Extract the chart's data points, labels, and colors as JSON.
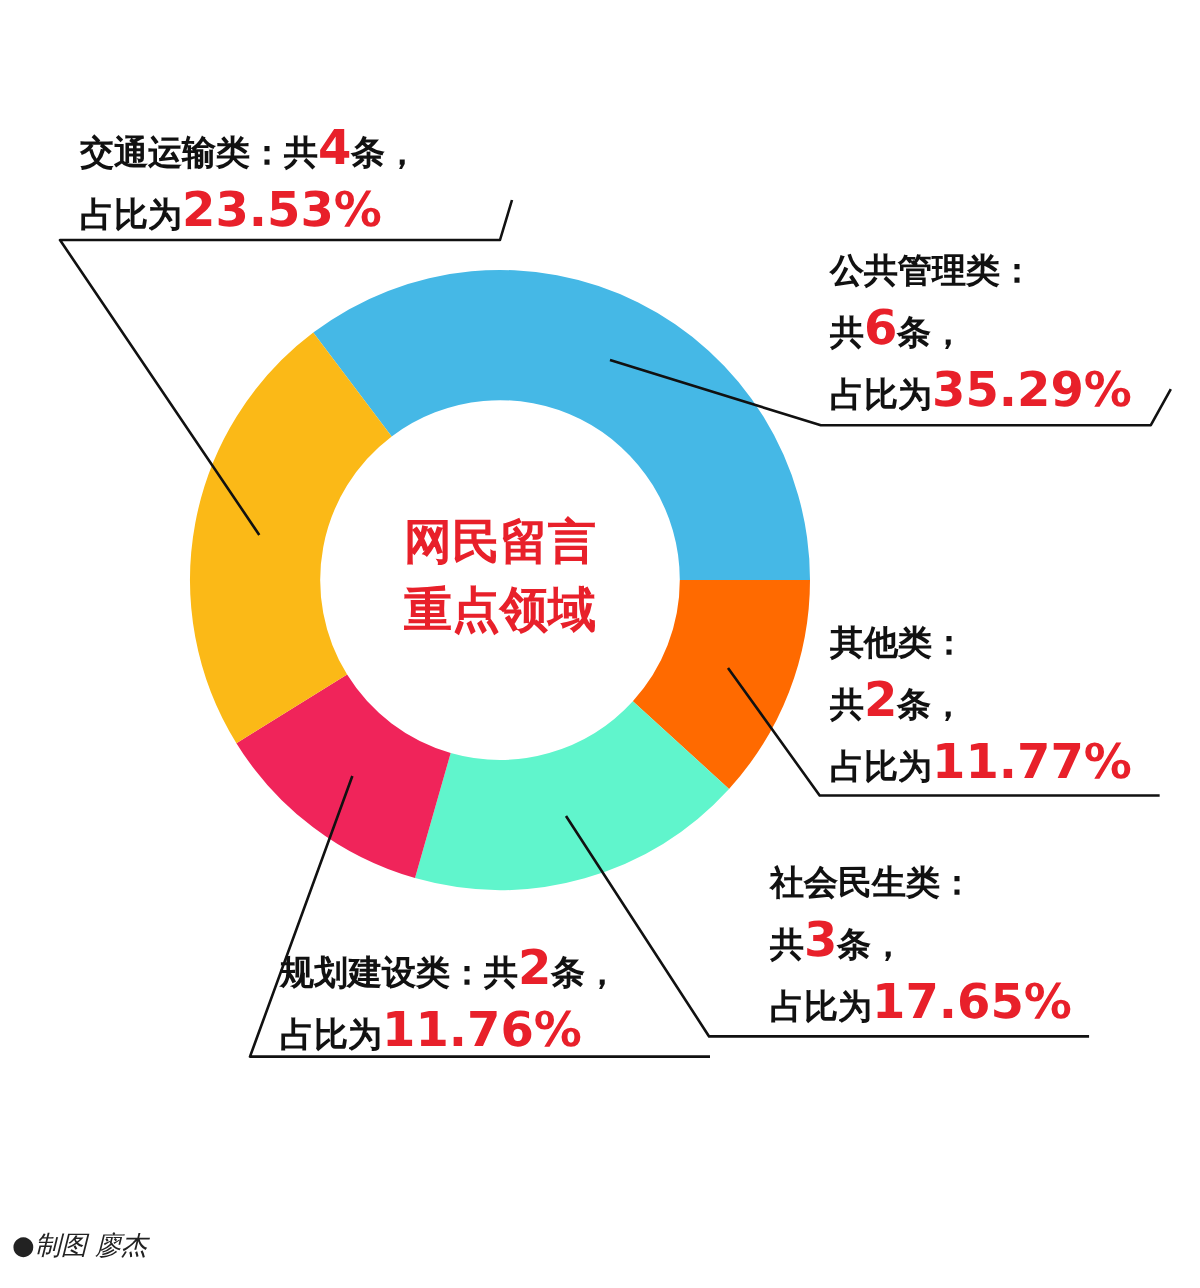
{
  "chart_data": {
    "type": "donut",
    "title": "网民留言重点领域",
    "categories": [
      "公共管理类",
      "其他类",
      "社会民生类",
      "规划建设类",
      "交通运输类"
    ],
    "values": [
      35.29,
      11.77,
      17.65,
      11.76,
      23.53
    ],
    "colors": [
      "#45b8e6",
      "#ff6a00",
      "#60f5cc",
      "#f0245a",
      "#fbb917"
    ],
    "value_labels": [
      "：共6条，占比为35.29%",
      "：共2条，占比为11.77%",
      "：共3条，占比为17.65%",
      "：共2条，占比为11.76%",
      "：共4条，占比为23.53%"
    ],
    "annotations": [
      "●制图 廖杰"
    ],
    "legend": false
  }
}
